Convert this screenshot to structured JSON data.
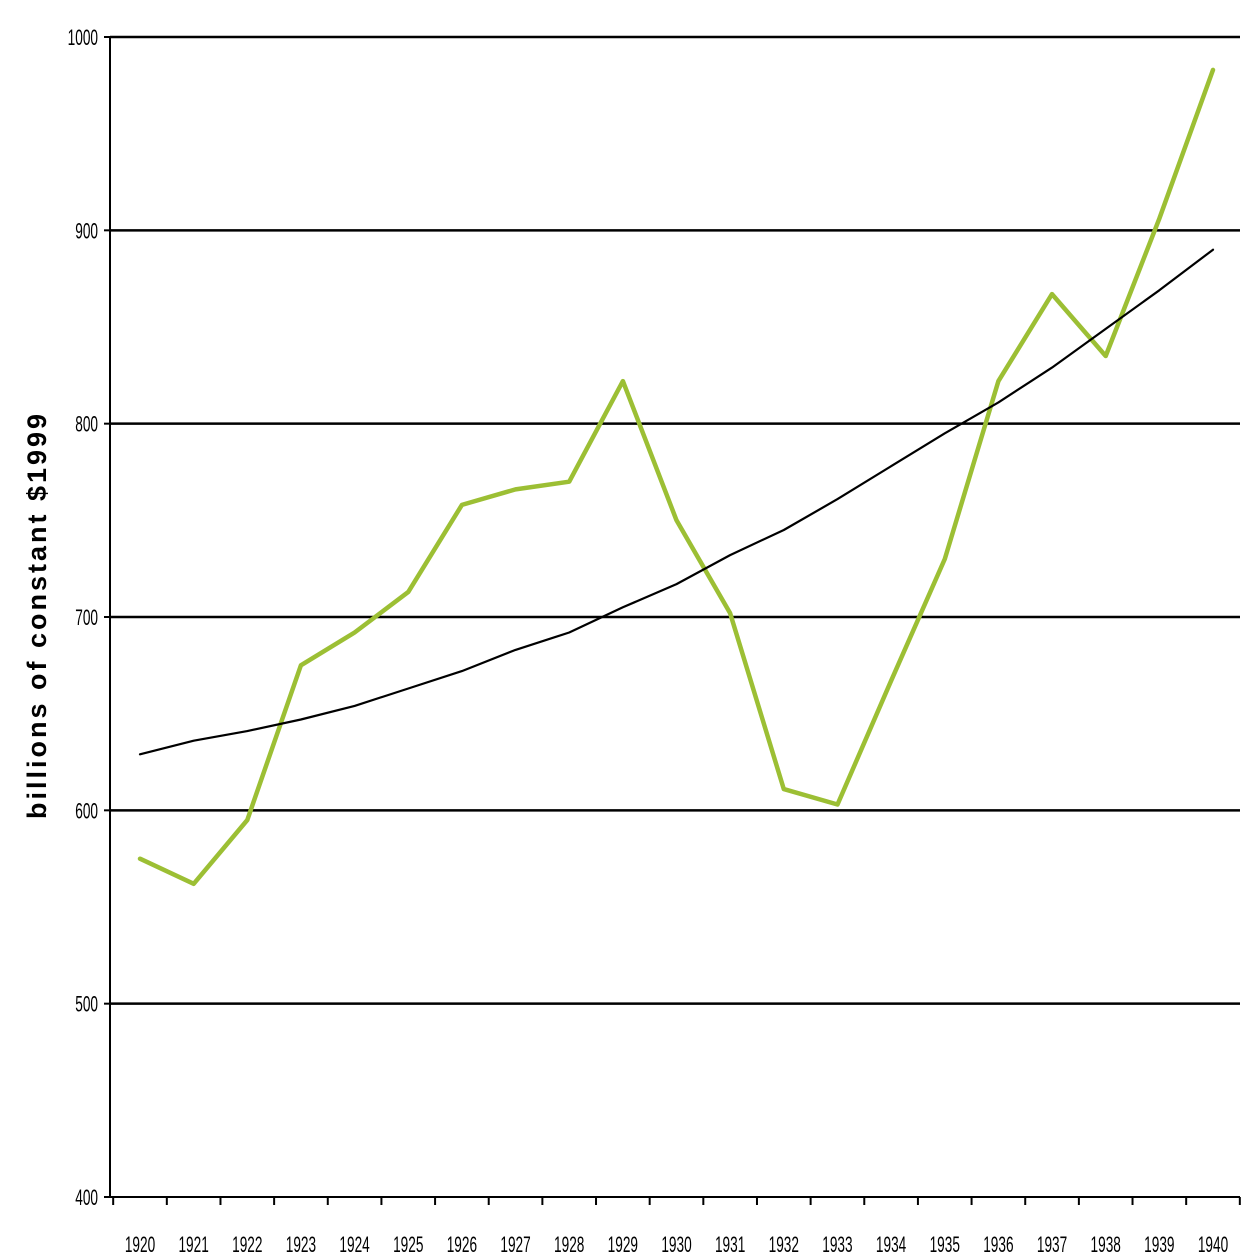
{
  "chart_data": {
    "type": "line",
    "title": "",
    "xlabel": "",
    "ylabel": "billions of constant $1999",
    "x": [
      1920,
      1921,
      1922,
      1923,
      1924,
      1925,
      1926,
      1927,
      1928,
      1929,
      1930,
      1931,
      1932,
      1933,
      1934,
      1935,
      1936,
      1937,
      1938,
      1939,
      1940
    ],
    "categories": [
      "1920",
      "1921",
      "1922",
      "1923",
      "1924",
      "1925",
      "1926",
      "1927",
      "1928",
      "1929",
      "1930",
      "1931",
      "1932",
      "1933",
      "1934",
      "1935",
      "1936",
      "1937",
      "1938",
      "1939",
      "1940"
    ],
    "yticks": [
      "400",
      "500",
      "600",
      "700",
      "800",
      "900",
      "1000"
    ],
    "ylim": [
      400,
      1000
    ],
    "grid": "horizontal",
    "series": [
      {
        "role": "data",
        "color": "#9cbf34",
        "values": [
          575,
          562,
          595,
          675,
          692,
          713,
          758,
          766,
          770,
          822,
          750,
          702,
          611,
          603,
          667,
          730,
          822,
          867,
          835,
          906,
          983
        ]
      },
      {
        "role": "trend",
        "color": "#000000",
        "values": [
          629,
          636,
          641,
          647,
          654,
          663,
          672,
          683,
          692,
          705,
          717,
          732,
          745,
          761,
          778,
          795,
          811,
          829,
          849,
          869,
          890
        ]
      }
    ]
  }
}
